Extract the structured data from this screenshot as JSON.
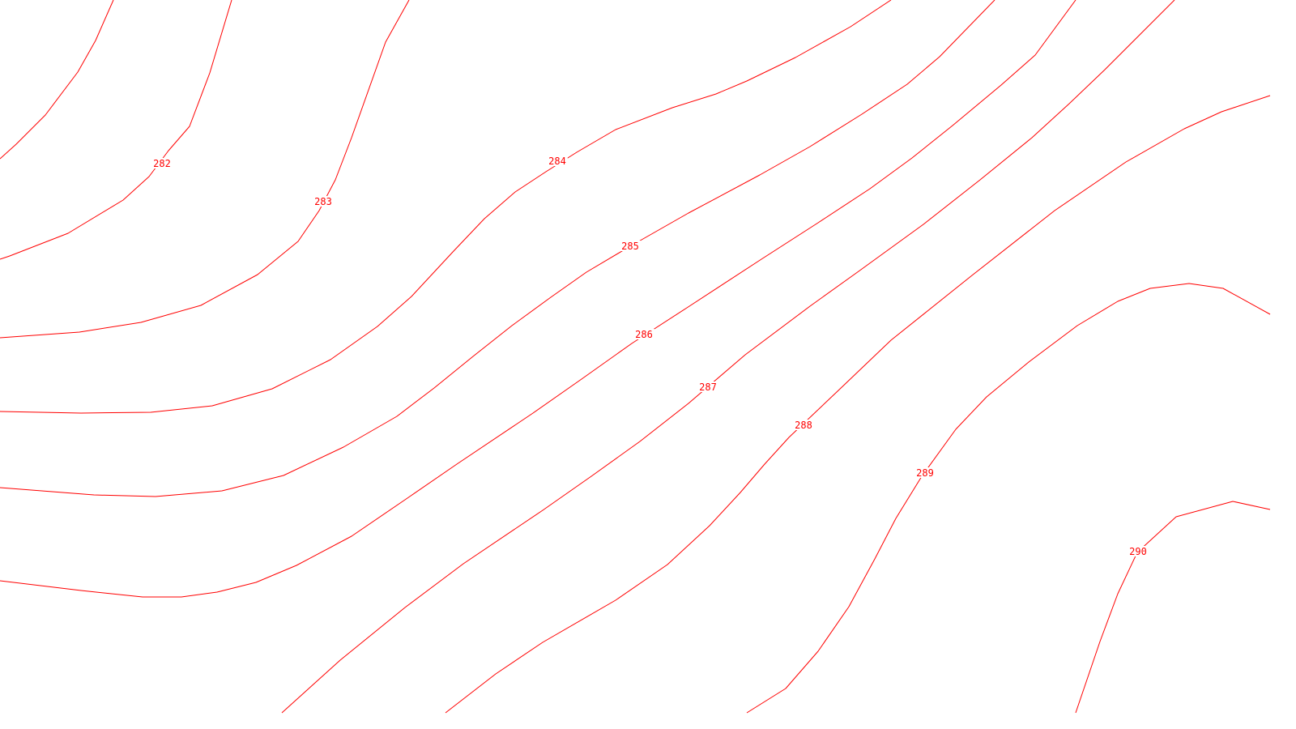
{
  "map": {
    "line_color": "#ff0000",
    "background_color": "#ffffff",
    "contours": [
      {
        "elevation": 282,
        "label": "282"
      },
      {
        "elevation": 283,
        "label": "283"
      },
      {
        "elevation": 284,
        "label": "284"
      },
      {
        "elevation": 285,
        "label": "285"
      },
      {
        "elevation": 286,
        "label": "286"
      },
      {
        "elevation": 287,
        "label": "287"
      },
      {
        "elevation": 288,
        "label": "288"
      },
      {
        "elevation": 289,
        "label": "289"
      },
      {
        "elevation": 290,
        "label": "290"
      }
    ]
  }
}
